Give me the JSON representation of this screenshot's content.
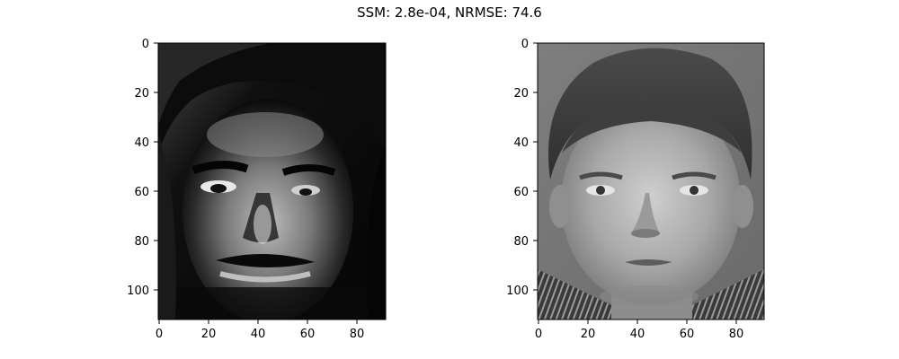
{
  "figure": {
    "title": "SSM: 2.8e-04, NRMSE: 74.6"
  },
  "panels": [
    {
      "name": "reconstructed-face",
      "description_mode": "high-contrast dark reconstruction",
      "x_ticks": [
        "0",
        "20",
        "40",
        "60",
        "80"
      ],
      "y_ticks": [
        "0",
        "20",
        "40",
        "60",
        "80",
        "100"
      ],
      "x_range": [
        0,
        92
      ],
      "y_range": [
        0,
        112
      ]
    },
    {
      "name": "original-face",
      "description_mode": "grayscale original photo",
      "x_ticks": [
        "0",
        "20",
        "40",
        "60",
        "80"
      ],
      "y_ticks": [
        "0",
        "20",
        "40",
        "60",
        "80",
        "100"
      ],
      "x_range": [
        0,
        92
      ],
      "y_range": [
        0,
        112
      ]
    }
  ]
}
